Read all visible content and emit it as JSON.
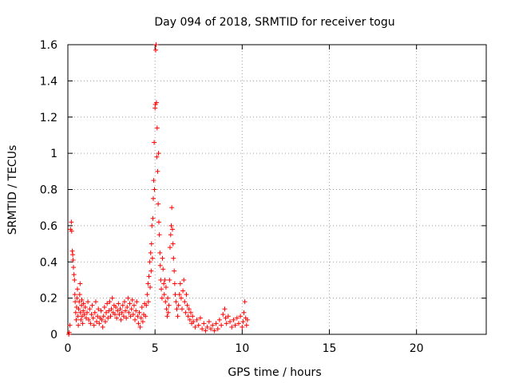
{
  "chart_data": {
    "type": "scatter",
    "title": "Day 094 of 2018, SRMTID for receiver togu",
    "xlabel": "GPS time / hours",
    "ylabel": "SRMTID / TECUs",
    "xlim": [
      0,
      24
    ],
    "ylim": [
      0,
      1.6
    ],
    "xticks": [
      0,
      5,
      10,
      15,
      20
    ],
    "yticks": [
      0,
      0.2,
      0.4,
      0.6,
      0.8,
      1,
      1.2,
      1.4,
      1.6
    ],
    "xtick_labels": [
      "0",
      "5",
      "10",
      "15",
      "20"
    ],
    "ytick_labels": [
      "0",
      "0.2",
      "0.4",
      "0.6",
      "0.8",
      "1",
      "1.2",
      "1.4",
      "1.6"
    ],
    "grid": true,
    "marker": "+",
    "color": "#ff0000",
    "series": [
      {
        "name": "SRMTID",
        "points": [
          [
            0.05,
            0.0
          ],
          [
            0.08,
            0.01
          ],
          [
            0.12,
            0.05
          ],
          [
            0.15,
            0.58
          ],
          [
            0.2,
            0.62
          ],
          [
            0.22,
            0.57
          ],
          [
            0.25,
            0.46
          ],
          [
            0.28,
            0.44
          ],
          [
            0.3,
            0.41
          ],
          [
            0.32,
            0.37
          ],
          [
            0.35,
            0.33
          ],
          [
            0.38,
            0.3
          ],
          [
            0.4,
            0.22
          ],
          [
            0.42,
            0.18
          ],
          [
            0.45,
            0.12
          ],
          [
            0.48,
            0.08
          ],
          [
            0.5,
            0.15
          ],
          [
            0.52,
            0.2
          ],
          [
            0.55,
            0.25
          ],
          [
            0.58,
            0.1
          ],
          [
            0.6,
            0.05
          ],
          [
            0.62,
            0.14
          ],
          [
            0.65,
            0.18
          ],
          [
            0.68,
            0.22
          ],
          [
            0.7,
            0.28
          ],
          [
            0.72,
            0.12
          ],
          [
            0.75,
            0.08
          ],
          [
            0.78,
            0.16
          ],
          [
            0.8,
            0.19
          ],
          [
            0.82,
            0.1
          ],
          [
            0.85,
            0.06
          ],
          [
            0.88,
            0.13
          ],
          [
            0.9,
            0.17
          ],
          [
            0.95,
            0.11
          ],
          [
            1.0,
            0.15
          ],
          [
            1.05,
            0.09
          ],
          [
            1.1,
            0.12
          ],
          [
            1.15,
            0.18
          ],
          [
            1.2,
            0.08
          ],
          [
            1.25,
            0.14
          ],
          [
            1.3,
            0.06
          ],
          [
            1.35,
            0.11
          ],
          [
            1.4,
            0.16
          ],
          [
            1.45,
            0.09
          ],
          [
            1.5,
            0.05
          ],
          [
            1.55,
            0.12
          ],
          [
            1.6,
            0.18
          ],
          [
            1.65,
            0.07
          ],
          [
            1.7,
            0.1
          ],
          [
            1.75,
            0.14
          ],
          [
            1.8,
            0.06
          ],
          [
            1.85,
            0.09
          ],
          [
            1.9,
            0.13
          ],
          [
            1.95,
            0.08
          ],
          [
            2.0,
            0.04
          ],
          [
            2.05,
            0.1
          ],
          [
            2.1,
            0.15
          ],
          [
            2.15,
            0.07
          ],
          [
            2.2,
            0.12
          ],
          [
            2.25,
            0.17
          ],
          [
            2.3,
            0.09
          ],
          [
            2.35,
            0.13
          ],
          [
            2.4,
            0.18
          ],
          [
            2.45,
            0.1
          ],
          [
            2.5,
            0.14
          ],
          [
            2.55,
            0.2
          ],
          [
            2.6,
            0.12
          ],
          [
            2.65,
            0.16
          ],
          [
            2.7,
            0.11
          ],
          [
            2.75,
            0.15
          ],
          [
            2.8,
            0.09
          ],
          [
            2.85,
            0.13
          ],
          [
            2.9,
            0.17
          ],
          [
            2.95,
            0.11
          ],
          [
            3.0,
            0.14
          ],
          [
            3.05,
            0.08
          ],
          [
            3.1,
            0.12
          ],
          [
            3.15,
            0.16
          ],
          [
            3.2,
            0.1
          ],
          [
            3.25,
            0.18
          ],
          [
            3.3,
            0.13
          ],
          [
            3.35,
            0.09
          ],
          [
            3.4,
            0.15
          ],
          [
            3.45,
            0.2
          ],
          [
            3.5,
            0.12
          ],
          [
            3.55,
            0.17
          ],
          [
            3.6,
            0.1
          ],
          [
            3.65,
            0.14
          ],
          [
            3.7,
            0.19
          ],
          [
            3.75,
            0.11
          ],
          [
            3.8,
            0.16
          ],
          [
            3.85,
            0.08
          ],
          [
            3.9,
            0.13
          ],
          [
            3.95,
            0.18
          ],
          [
            4.0,
            0.1
          ],
          [
            4.05,
            0.06
          ],
          [
            4.1,
            0.12
          ],
          [
            4.15,
            0.04
          ],
          [
            4.2,
            0.09
          ],
          [
            4.25,
            0.15
          ],
          [
            4.3,
            0.07
          ],
          [
            4.35,
            0.11
          ],
          [
            4.4,
            0.17
          ],
          [
            4.45,
            0.1
          ],
          [
            4.5,
            0.16
          ],
          [
            4.55,
            0.22
          ],
          [
            4.6,
            0.28
          ],
          [
            4.62,
            0.18
          ],
          [
            4.65,
            0.32
          ],
          [
            4.7,
            0.4
          ],
          [
            4.72,
            0.26
          ],
          [
            4.75,
            0.45
          ],
          [
            4.78,
            0.35
          ],
          [
            4.8,
            0.5
          ],
          [
            4.82,
            0.6
          ],
          [
            4.85,
            0.42
          ],
          [
            4.88,
            0.64
          ],
          [
            4.9,
            0.75
          ],
          [
            4.92,
            0.85
          ],
          [
            4.95,
            1.06
          ],
          [
            4.97,
            0.8
          ],
          [
            5.0,
            1.25
          ],
          [
            5.02,
            1.27
          ],
          [
            5.04,
            1.57
          ],
          [
            5.06,
            1.6
          ],
          [
            5.08,
            1.28
          ],
          [
            5.1,
            0.98
          ],
          [
            5.12,
            1.14
          ],
          [
            5.15,
            0.9
          ],
          [
            5.18,
            0.72
          ],
          [
            5.2,
            1.0
          ],
          [
            5.22,
            0.62
          ],
          [
            5.25,
            0.55
          ],
          [
            5.28,
            0.45
          ],
          [
            5.3,
            0.38
          ],
          [
            5.33,
            0.3
          ],
          [
            5.36,
            0.25
          ],
          [
            5.4,
            0.2
          ],
          [
            5.43,
            0.42
          ],
          [
            5.46,
            0.36
          ],
          [
            5.5,
            0.28
          ],
          [
            5.53,
            0.22
          ],
          [
            5.56,
            0.3
          ],
          [
            5.6,
            0.18
          ],
          [
            5.63,
            0.26
          ],
          [
            5.66,
            0.14
          ],
          [
            5.7,
            0.1
          ],
          [
            5.73,
            0.2
          ],
          [
            5.76,
            0.12
          ],
          [
            5.8,
            0.16
          ],
          [
            5.83,
            0.3
          ],
          [
            5.86,
            0.48
          ],
          [
            5.9,
            0.55
          ],
          [
            5.93,
            0.6
          ],
          [
            5.96,
            0.7
          ],
          [
            6.0,
            0.58
          ],
          [
            6.03,
            0.5
          ],
          [
            6.06,
            0.42
          ],
          [
            6.1,
            0.35
          ],
          [
            6.13,
            0.28
          ],
          [
            6.16,
            0.22
          ],
          [
            6.2,
            0.18
          ],
          [
            6.25,
            0.14
          ],
          [
            6.3,
            0.1
          ],
          [
            6.35,
            0.16
          ],
          [
            6.4,
            0.22
          ],
          [
            6.45,
            0.28
          ],
          [
            6.5,
            0.2
          ],
          [
            6.55,
            0.14
          ],
          [
            6.6,
            0.24
          ],
          [
            6.65,
            0.3
          ],
          [
            6.7,
            0.18
          ],
          [
            6.75,
            0.12
          ],
          [
            6.8,
            0.22
          ],
          [
            6.85,
            0.16
          ],
          [
            6.9,
            0.1
          ],
          [
            6.95,
            0.14
          ],
          [
            7.0,
            0.08
          ],
          [
            7.05,
            0.12
          ],
          [
            7.1,
            0.06
          ],
          [
            7.15,
            0.1
          ],
          [
            7.2,
            0.07
          ],
          [
            7.3,
            0.04
          ],
          [
            7.4,
            0.08
          ],
          [
            7.5,
            0.05
          ],
          [
            7.6,
            0.09
          ],
          [
            7.7,
            0.03
          ],
          [
            7.8,
            0.06
          ],
          [
            7.9,
            0.02
          ],
          [
            8.0,
            0.04
          ],
          [
            8.1,
            0.07
          ],
          [
            8.2,
            0.03
          ],
          [
            8.3,
            0.05
          ],
          [
            8.4,
            0.02
          ],
          [
            8.5,
            0.06
          ],
          [
            8.6,
            0.03
          ],
          [
            8.7,
            0.08
          ],
          [
            8.8,
            0.05
          ],
          [
            8.9,
            0.11
          ],
          [
            9.0,
            0.14
          ],
          [
            9.05,
            0.09
          ],
          [
            9.1,
            0.06
          ],
          [
            9.2,
            0.1
          ],
          [
            9.3,
            0.07
          ],
          [
            9.4,
            0.04
          ],
          [
            9.5,
            0.08
          ],
          [
            9.6,
            0.05
          ],
          [
            9.7,
            0.09
          ],
          [
            9.8,
            0.06
          ],
          [
            9.9,
            0.1
          ],
          [
            10.0,
            0.04
          ],
          [
            10.05,
            0.07
          ],
          [
            10.1,
            0.12
          ],
          [
            10.15,
            0.18
          ],
          [
            10.2,
            0.09
          ],
          [
            10.25,
            0.05
          ],
          [
            10.3,
            0.08
          ]
        ]
      }
    ]
  }
}
